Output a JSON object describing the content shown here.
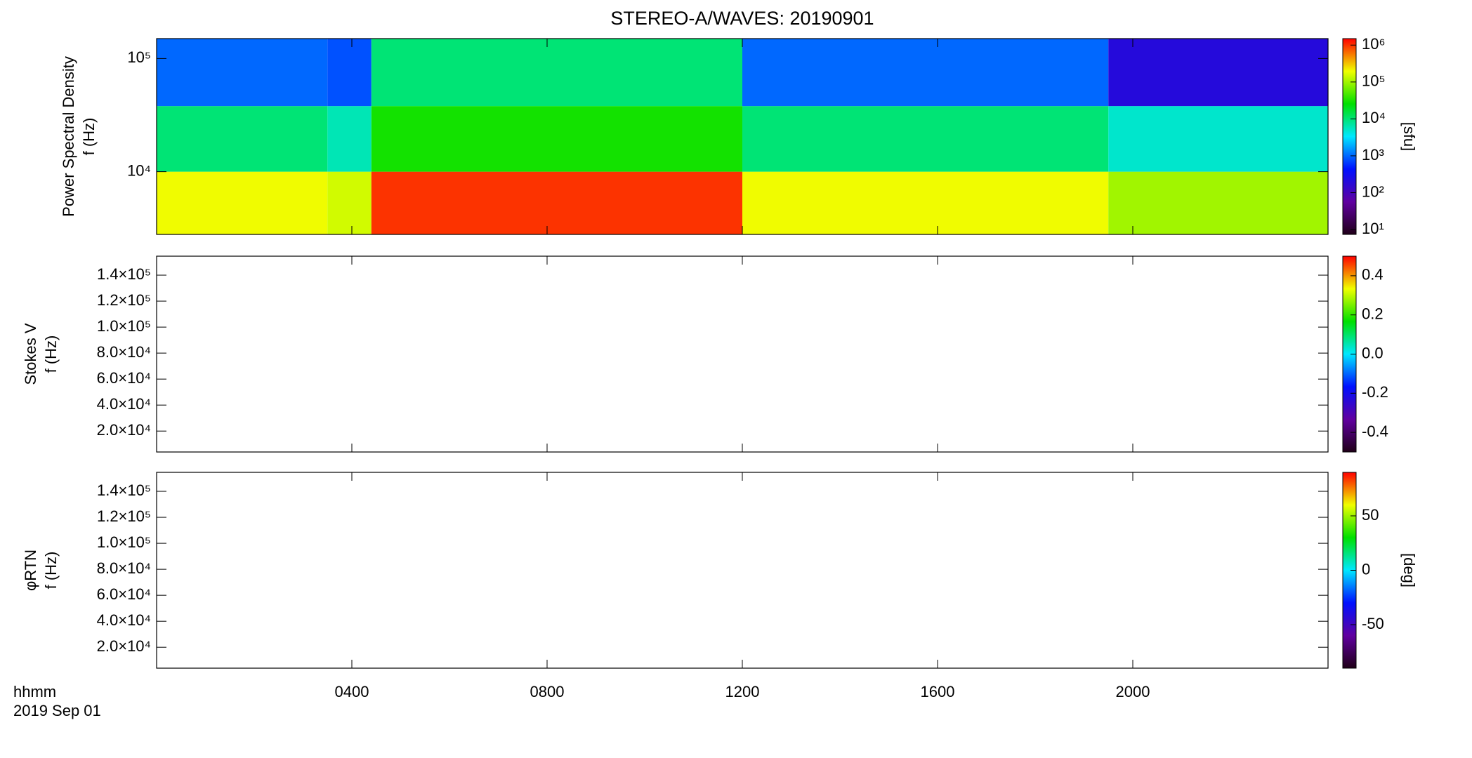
{
  "title": "STEREO-A/WAVES: 20190901",
  "x_axis": {
    "label": "hhmm",
    "date": "2019 Sep 01",
    "xlim": [
      0,
      24
    ],
    "xticks": [
      {
        "value": 4,
        "label": "0400"
      },
      {
        "value": 8,
        "label": "0800"
      },
      {
        "value": 12,
        "label": "1200"
      },
      {
        "value": 16,
        "label": "1600"
      },
      {
        "value": 20,
        "label": "2000"
      }
    ]
  },
  "chart_data": [
    {
      "type": "heatmap",
      "ylabel": [
        "Power Spectral Density",
        "f (Hz)"
      ],
      "log_y": true,
      "ylim": [
        2790,
        150000
      ],
      "yticks": [
        {
          "value": 10000,
          "label": "10⁴"
        },
        {
          "value": 100000,
          "label": "10⁵"
        }
      ],
      "clabel": "[sfu]",
      "log_c": true,
      "clim": [
        7.4,
        1500000
      ],
      "cticks": [
        {
          "value": 10,
          "label": "10¹"
        },
        {
          "value": 100,
          "label": "10²"
        },
        {
          "value": 1000,
          "label": "10³"
        },
        {
          "value": 10000,
          "label": "10⁴"
        },
        {
          "value": 100000,
          "label": "10⁵"
        },
        {
          "value": 1000000,
          "label": "10⁶"
        }
      ],
      "colormap": [
        "#200018",
        "#6000a0",
        "#0010ff",
        "#00e8ff",
        "#00e000",
        "#f0ff00",
        "#ff0000"
      ],
      "x_edges": [
        0,
        3.5,
        4.4,
        12,
        19.5,
        24
      ],
      "y_edges": [
        2790,
        10000,
        38000,
        150000
      ],
      "z": [
        [
          200000,
          150000,
          1000000,
          200000,
          100000
        ],
        [
          10000,
          6000,
          30000,
          10000,
          5000
        ],
        [
          1000,
          800,
          10000,
          1000,
          200
        ]
      ]
    },
    {
      "type": "heatmap",
      "ylabel": [
        "Stokes V",
        "f (Hz)"
      ],
      "log_y": false,
      "ylim": [
        3900,
        154600
      ],
      "yticks": [
        {
          "value": 20000,
          "label": "2.0×10⁴"
        },
        {
          "value": 40000,
          "label": "4.0×10⁴"
        },
        {
          "value": 60000,
          "label": "6.0×10⁴"
        },
        {
          "value": 80000,
          "label": "8.0×10⁴"
        },
        {
          "value": 100000,
          "label": "1.0×10⁵"
        },
        {
          "value": 120000,
          "label": "1.2×10⁵"
        },
        {
          "value": 140000,
          "label": "1.4×10⁵"
        }
      ],
      "log_c": false,
      "clim": [
        -0.5,
        0.5
      ],
      "cticks": [
        -0.4,
        -0.2,
        {
          "value": 0,
          "label": "0.0"
        },
        0.2,
        0.4
      ],
      "colormap": [
        "#200018",
        "#6000a0",
        "#0010ff",
        "#00e8ff",
        "#00e000",
        "#f0ff00",
        "#ff0000"
      ]
    },
    {
      "type": "heatmap",
      "ylabel": [
        "φRTN",
        "f (Hz)"
      ],
      "log_y": false,
      "ylim": [
        3900,
        154600
      ],
      "yticks": [
        {
          "value": 20000,
          "label": "2.0×10⁴"
        },
        {
          "value": 40000,
          "label": "4.0×10⁴"
        },
        {
          "value": 60000,
          "label": "6.0×10⁴"
        },
        {
          "value": 80000,
          "label": "8.0×10⁴"
        },
        {
          "value": 100000,
          "label": "1.0×10⁵"
        },
        {
          "value": 120000,
          "label": "1.2×10⁵"
        },
        {
          "value": 140000,
          "label": "1.4×10⁵"
        }
      ],
      "clabel": "[deg]",
      "log_c": false,
      "clim": [
        -90,
        90
      ],
      "cticks": [
        -50,
        0,
        50
      ],
      "colormap": [
        "#200018",
        "#6000a0",
        "#0010ff",
        "#00e8ff",
        "#00e000",
        "#f0ff00",
        "#ff0000"
      ]
    }
  ]
}
